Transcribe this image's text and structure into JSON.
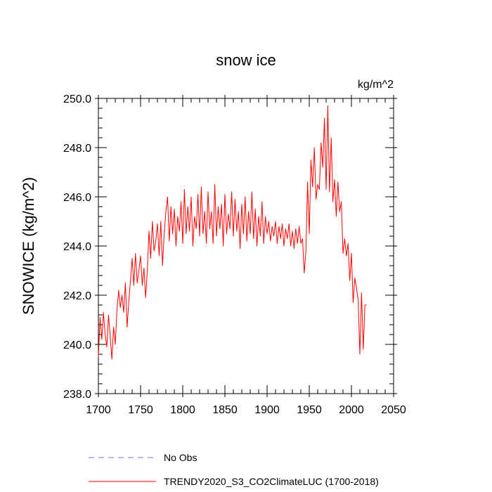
{
  "chart_data": {
    "type": "line",
    "title": "snow ice",
    "units": "kg/m^2",
    "xlabel": "",
    "ylabel": "SNOWICE  (kg/m^2)",
    "xlim": [
      1700,
      2050
    ],
    "ylim": [
      238.0,
      250.0
    ],
    "x_ticks": [
      1700,
      1750,
      1800,
      1850,
      1900,
      1950,
      2000,
      2050
    ],
    "x_tick_labels": [
      "1700",
      "1750",
      "1800",
      "1850",
      "1900",
      "1950",
      "2000",
      "2050"
    ],
    "y_ticks": [
      238.0,
      240.0,
      242.0,
      244.0,
      246.0,
      248.0,
      250.0
    ],
    "y_tick_labels": [
      "238.0",
      "240.0",
      "242.0",
      "244.0",
      "246.0",
      "248.0",
      "250.0"
    ],
    "grid": false,
    "legend": {
      "placement": "bottom",
      "entries": [
        {
          "label": "No Obs",
          "color": "#7070ff",
          "style": "dashed"
        },
        {
          "label": "TRENDY2020_S3_CO2ClimateLUC (1700-2018)",
          "color": "#ff0000",
          "style": "solid"
        }
      ]
    },
    "series": [
      {
        "name": "TRENDY2020_S3_CO2ClimateLUC (1700-2018)",
        "color": "#ff0000",
        "x": [
          1700,
          1702,
          1704,
          1706,
          1708,
          1710,
          1712,
          1714,
          1716,
          1718,
          1720,
          1722,
          1724,
          1726,
          1728,
          1730,
          1732,
          1734,
          1736,
          1738,
          1740,
          1742,
          1744,
          1746,
          1748,
          1750,
          1752,
          1754,
          1756,
          1758,
          1760,
          1762,
          1764,
          1766,
          1768,
          1770,
          1772,
          1774,
          1776,
          1778,
          1780,
          1782,
          1784,
          1786,
          1788,
          1790,
          1792,
          1794,
          1796,
          1798,
          1800,
          1802,
          1804,
          1806,
          1808,
          1810,
          1812,
          1814,
          1816,
          1818,
          1820,
          1822,
          1824,
          1826,
          1828,
          1830,
          1832,
          1834,
          1836,
          1838,
          1840,
          1842,
          1844,
          1846,
          1848,
          1850,
          1852,
          1854,
          1856,
          1858,
          1860,
          1862,
          1864,
          1866,
          1868,
          1870,
          1872,
          1874,
          1876,
          1878,
          1880,
          1882,
          1884,
          1886,
          1888,
          1890,
          1892,
          1894,
          1896,
          1898,
          1900,
          1902,
          1904,
          1906,
          1908,
          1910,
          1912,
          1914,
          1916,
          1918,
          1920,
          1922,
          1924,
          1926,
          1928,
          1930,
          1932,
          1934,
          1936,
          1938,
          1940,
          1942,
          1944,
          1946,
          1948,
          1950,
          1952,
          1954,
          1956,
          1958,
          1960,
          1962,
          1964,
          1966,
          1968,
          1970,
          1972,
          1974,
          1976,
          1978,
          1980,
          1982,
          1984,
          1986,
          1988,
          1990,
          1992,
          1994,
          1996,
          1998,
          2000,
          2002,
          2004,
          2006,
          2008,
          2010,
          2012,
          2014,
          2016,
          2018
        ],
        "values": [
          239.5,
          241.1,
          240.2,
          241.3,
          240.4,
          239.9,
          241.2,
          240.3,
          239.4,
          240.7,
          240.0,
          241.4,
          242.2,
          241.5,
          242.0,
          241.3,
          242.5,
          240.7,
          241.7,
          242.6,
          243.5,
          242.4,
          243.7,
          242.5,
          243.0,
          243.6,
          242.4,
          243.1,
          241.9,
          243.0,
          244.6,
          243.5,
          245.0,
          243.8,
          244.2,
          244.9,
          243.6,
          245.0,
          243.2,
          244.5,
          245.4,
          246.0,
          244.2,
          245.6,
          244.5,
          245.5,
          244.0,
          245.2,
          244.6,
          245.8,
          244.1,
          246.3,
          244.5,
          245.6,
          244.6,
          246.0,
          244.0,
          245.2,
          244.7,
          246.1,
          244.4,
          246.4,
          244.5,
          245.4,
          244.1,
          246.2,
          244.7,
          245.4,
          244.1,
          246.5,
          244.4,
          245.6,
          244.7,
          245.7,
          244.0,
          246.1,
          244.5,
          245.3,
          244.7,
          246.2,
          244.4,
          245.9,
          244.6,
          245.4,
          243.9,
          245.7,
          244.5,
          246.0,
          244.2,
          245.4,
          244.5,
          246.2,
          244.3,
          245.5,
          244.0,
          245.2,
          244.4,
          245.8,
          244.1,
          245.2,
          244.5,
          245.0,
          244.2,
          244.8,
          244.4,
          245.0,
          244.1,
          244.8,
          244.3,
          244.9,
          244.0,
          244.7,
          244.3,
          244.9,
          244.0,
          244.6,
          243.9,
          244.7,
          244.1,
          244.8,
          244.1,
          244.3,
          242.9,
          243.8,
          246.6,
          244.5,
          247.5,
          246.4,
          248.0,
          245.9,
          246.5,
          246.3,
          248.2,
          247.2,
          249.2,
          246.3,
          249.7,
          246.2,
          248.4,
          245.8,
          246.7,
          245.2,
          246.6,
          245.4,
          245.8,
          243.7,
          244.3,
          243.6,
          244.1,
          242.6,
          243.7,
          241.7,
          242.7,
          242.3,
          241.8,
          239.6,
          242.1,
          239.8,
          241.6,
          241.6
        ]
      }
    ]
  }
}
